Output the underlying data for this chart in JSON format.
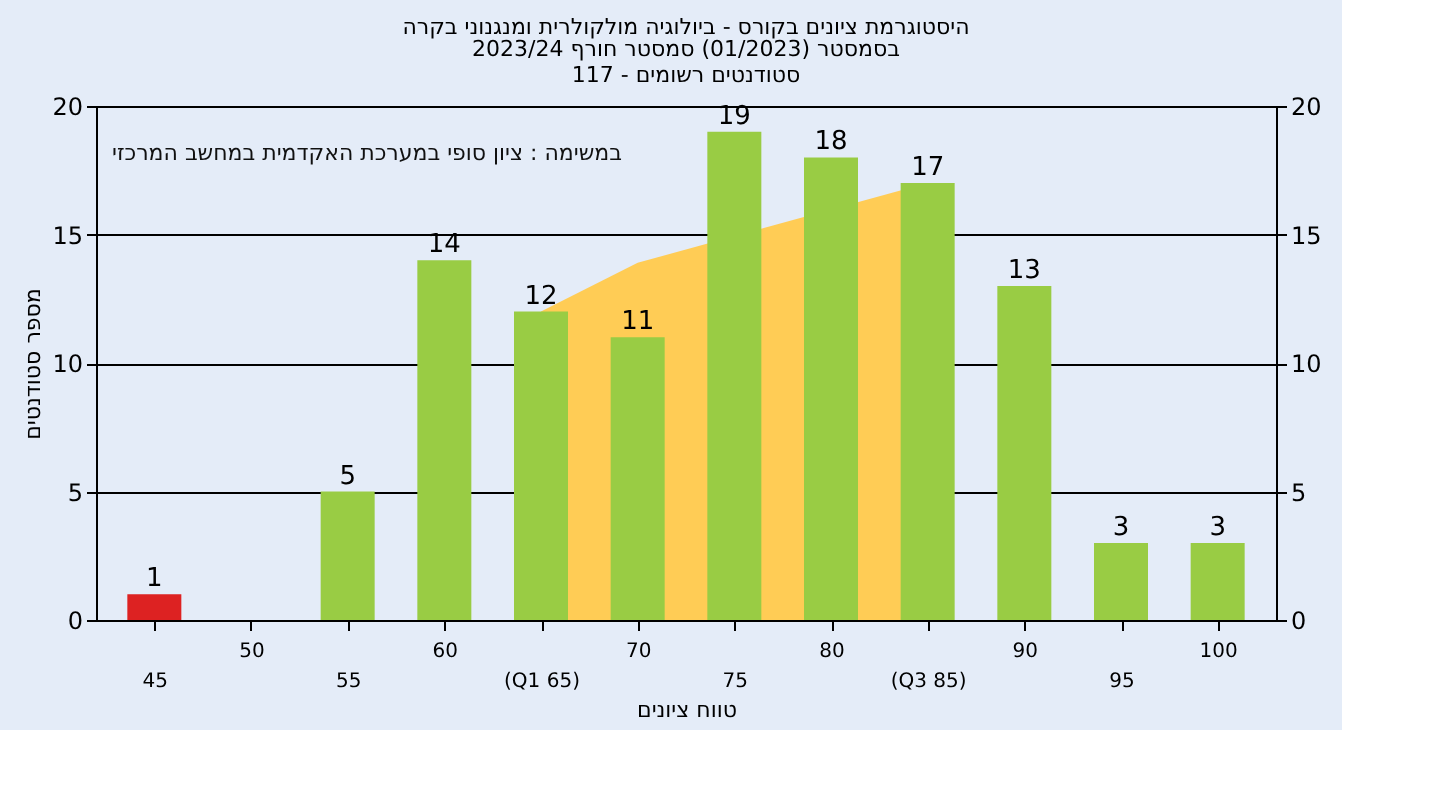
{
  "chart_data": {
    "type": "bar",
    "title": "היסטוגרמת ציונים בקורס - ביולוגיה מולקולרית ומנגנוני בקרה",
    "subtitle": "בסמסטר  (01/2023)  סמסטר חורף  2023/24\nסטודנטים רשומים - 117",
    "xlabel": "טווח ציונים",
    "ylabel": "מספר סטודנטים",
    "annotations": [
      "במשימה : ציון סופי במערכת האקדמית במחשב המרכזי"
    ],
    "categories": [
      "45",
      "50",
      "55",
      "60",
      "(Q1 65)",
      "70",
      "75",
      "80",
      "(Q3 85)",
      "90",
      "95",
      "100"
    ],
    "series": [
      {
        "type": "area",
        "color": "#ffcc55",
        "values": [
          null,
          null,
          null,
          null,
          12,
          13.9,
          null,
          null,
          17,
          null,
          null,
          null
        ],
        "value_labels": [
          null,
          null,
          null,
          null,
          null,
          null,
          null,
          null,
          null,
          null,
          null,
          null
        ]
      },
      {
        "type": "bar",
        "colors": [
          "#dd2222",
          "#99cc44",
          "#99cc44",
          "#99cc44",
          "#99cc44",
          "#99cc44",
          "#99cc44",
          "#99cc44",
          "#99cc44",
          "#99cc44",
          "#99cc44",
          "#99cc44"
        ],
        "values": [
          1,
          null,
          5,
          14,
          12,
          11,
          19,
          18,
          17,
          13,
          3,
          3
        ]
      }
    ],
    "ylim": [
      0,
      20
    ],
    "yticks": [
      0,
      5,
      10,
      15,
      20
    ],
    "y2lim": [
      0,
      20
    ],
    "y2ticks": [
      0,
      5,
      10,
      15,
      20
    ],
    "grid": "y",
    "data_labels": true
  }
}
